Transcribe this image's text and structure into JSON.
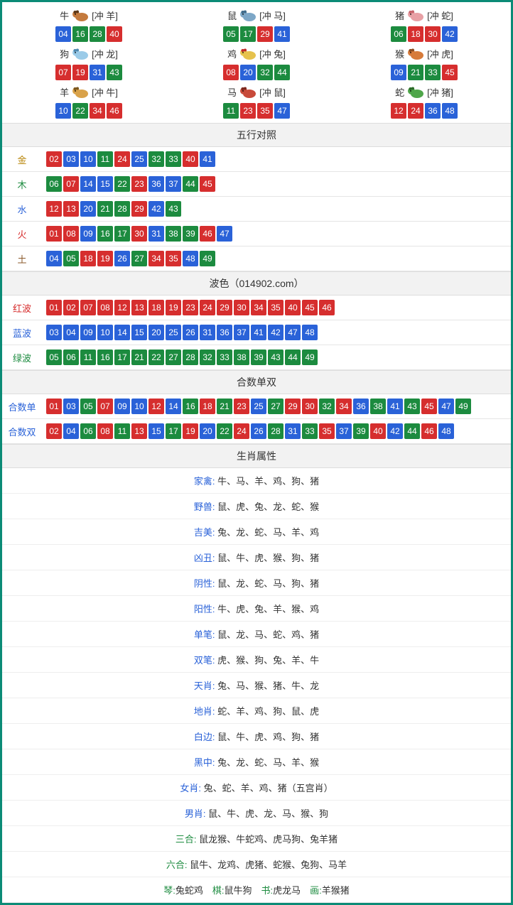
{
  "colors": {
    "border": "#0b8b76",
    "red": "#d62e2e",
    "blue": "#2a62d8",
    "green": "#1c8b3f",
    "head_bg": "#f2f2f2",
    "row_border": "#e5e5e5"
  },
  "zodiac_icons": {
    "牛": {
      "body": "#c47a3d",
      "accent": "#5a3717"
    },
    "鼠": {
      "body": "#7da7c7",
      "accent": "#3f6b8a"
    },
    "猪": {
      "body": "#e8a0a5",
      "accent": "#c7636b"
    },
    "狗": {
      "body": "#9bcbe8",
      "accent": "#4f89b0"
    },
    "鸡": {
      "body": "#e6c24d",
      "accent": "#c02a2a"
    },
    "猴": {
      "body": "#d77b3a",
      "accent": "#8a4a1f"
    },
    "羊": {
      "body": "#d9a24a",
      "accent": "#7a561f"
    },
    "马": {
      "body": "#c84a3a",
      "accent": "#7a281e"
    },
    "蛇": {
      "body": "#4fa64a",
      "accent": "#2c6b29"
    }
  },
  "zodiac": [
    {
      "name": "牛",
      "clash": "[冲 羊]",
      "nums": [
        "04",
        "16",
        "28",
        "40"
      ]
    },
    {
      "name": "鼠",
      "clash": "[冲 马]",
      "nums": [
        "05",
        "17",
        "29",
        "41"
      ]
    },
    {
      "name": "猪",
      "clash": "[冲 蛇]",
      "nums": [
        "06",
        "18",
        "30",
        "42"
      ]
    },
    {
      "name": "狗",
      "clash": "[冲 龙]",
      "nums": [
        "07",
        "19",
        "31",
        "43"
      ]
    },
    {
      "name": "鸡",
      "clash": "[冲 兔]",
      "nums": [
        "08",
        "20",
        "32",
        "44"
      ]
    },
    {
      "name": "猴",
      "clash": "[冲 虎]",
      "nums": [
        "09",
        "21",
        "33",
        "45"
      ]
    },
    {
      "name": "羊",
      "clash": "[冲 牛]",
      "nums": [
        "10",
        "22",
        "34",
        "46"
      ]
    },
    {
      "name": "马",
      "clash": "[冲 鼠]",
      "nums": [
        "11",
        "23",
        "35",
        "47"
      ]
    },
    {
      "name": "蛇",
      "clash": "[冲 猪]",
      "nums": [
        "12",
        "24",
        "36",
        "48"
      ]
    }
  ],
  "num_color_map": {
    "red": [
      "01",
      "02",
      "07",
      "08",
      "12",
      "13",
      "18",
      "19",
      "23",
      "24",
      "29",
      "30",
      "34",
      "35",
      "40",
      "45",
      "46"
    ],
    "blue": [
      "03",
      "04",
      "09",
      "10",
      "14",
      "15",
      "20",
      "25",
      "26",
      "31",
      "36",
      "37",
      "41",
      "42",
      "47",
      "48"
    ],
    "green": [
      "05",
      "06",
      "11",
      "16",
      "17",
      "21",
      "22",
      "27",
      "28",
      "32",
      "33",
      "38",
      "39",
      "43",
      "44",
      "49"
    ]
  },
  "wuxing": {
    "title": "五行对照",
    "rows": [
      {
        "label": "金",
        "cls": "lab-gold",
        "nums": [
          "02",
          "03",
          "10",
          "11",
          "24",
          "25",
          "32",
          "33",
          "40",
          "41"
        ]
      },
      {
        "label": "木",
        "cls": "lab-wood",
        "nums": [
          "06",
          "07",
          "14",
          "15",
          "22",
          "23",
          "36",
          "37",
          "44",
          "45"
        ]
      },
      {
        "label": "水",
        "cls": "lab-water",
        "nums": [
          "12",
          "13",
          "20",
          "21",
          "28",
          "29",
          "42",
          "43"
        ]
      },
      {
        "label": "火",
        "cls": "lab-fire",
        "nums": [
          "01",
          "08",
          "09",
          "16",
          "17",
          "30",
          "31",
          "38",
          "39",
          "46",
          "47"
        ]
      },
      {
        "label": "土",
        "cls": "lab-earth",
        "nums": [
          "04",
          "05",
          "18",
          "19",
          "26",
          "27",
          "34",
          "35",
          "48",
          "49"
        ]
      }
    ]
  },
  "bose": {
    "title": "波色（014902.com）",
    "rows": [
      {
        "label": "红波",
        "cls": "lab-red",
        "nums": [
          "01",
          "02",
          "07",
          "08",
          "12",
          "13",
          "18",
          "19",
          "23",
          "24",
          "29",
          "30",
          "34",
          "35",
          "40",
          "45",
          "46"
        ]
      },
      {
        "label": "蓝波",
        "cls": "lab-blue",
        "nums": [
          "03",
          "04",
          "09",
          "10",
          "14",
          "15",
          "20",
          "25",
          "26",
          "31",
          "36",
          "37",
          "41",
          "42",
          "47",
          "48"
        ]
      },
      {
        "label": "绿波",
        "cls": "lab-green",
        "nums": [
          "05",
          "06",
          "11",
          "16",
          "17",
          "21",
          "22",
          "27",
          "28",
          "32",
          "33",
          "38",
          "39",
          "43",
          "44",
          "49"
        ]
      }
    ]
  },
  "heshu": {
    "title": "合数单双",
    "rows": [
      {
        "label": "合数单",
        "cls": "lab-blue",
        "nums": [
          "01",
          "03",
          "05",
          "07",
          "09",
          "10",
          "12",
          "14",
          "16",
          "18",
          "21",
          "23",
          "25",
          "27",
          "29",
          "30",
          "32",
          "34",
          "36",
          "38",
          "41",
          "43",
          "45",
          "47",
          "49"
        ]
      },
      {
        "label": "合数双",
        "cls": "lab-blue",
        "nums": [
          "02",
          "04",
          "06",
          "08",
          "11",
          "13",
          "15",
          "17",
          "19",
          "20",
          "22",
          "24",
          "26",
          "28",
          "31",
          "33",
          "35",
          "37",
          "39",
          "40",
          "42",
          "44",
          "46",
          "48"
        ]
      }
    ]
  },
  "attrs": {
    "title": "生肖属性",
    "rows": [
      {
        "k": "家禽",
        "v": "牛、马、羊、鸡、狗、猪"
      },
      {
        "k": "野兽",
        "v": "鼠、虎、兔、龙、蛇、猴"
      },
      {
        "k": "吉美",
        "v": "兔、龙、蛇、马、羊、鸡"
      },
      {
        "k": "凶丑",
        "v": "鼠、牛、虎、猴、狗、猪"
      },
      {
        "k": "阴性",
        "v": "鼠、龙、蛇、马、狗、猪"
      },
      {
        "k": "阳性",
        "v": "牛、虎、兔、羊、猴、鸡"
      },
      {
        "k": "单笔",
        "v": "鼠、龙、马、蛇、鸡、猪"
      },
      {
        "k": "双笔",
        "v": "虎、猴、狗、兔、羊、牛"
      },
      {
        "k": "天肖",
        "v": "兔、马、猴、猪、牛、龙"
      },
      {
        "k": "地肖",
        "v": "蛇、羊、鸡、狗、鼠、虎"
      },
      {
        "k": "白边",
        "v": "鼠、牛、虎、鸡、狗、猪"
      },
      {
        "k": "黑中",
        "v": "兔、龙、蛇、马、羊、猴"
      },
      {
        "k": "女肖",
        "v": "兔、蛇、羊、鸡、猪（五宫肖）"
      },
      {
        "k": "男肖",
        "v": "鼠、牛、虎、龙、马、猴、狗"
      },
      {
        "k": "三合",
        "kcls": "green",
        "v": "鼠龙猴、牛蛇鸡、虎马狗、兔羊猪"
      },
      {
        "k": "六合",
        "kcls": "green",
        "v": "鼠牛、龙鸡、虎猪、蛇猴、兔狗、马羊"
      }
    ],
    "last_row_parts": [
      {
        "k": "琴",
        "v": "兔蛇鸡"
      },
      {
        "k": "棋",
        "v": "鼠牛狗"
      },
      {
        "k": "书",
        "v": "虎龙马"
      },
      {
        "k": "画",
        "v": "羊猴猪"
      }
    ]
  }
}
